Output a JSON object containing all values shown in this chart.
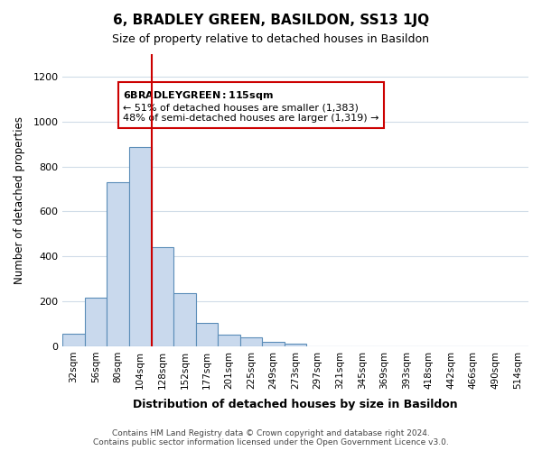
{
  "title": "6, BRADLEY GREEN, BASILDON, SS13 1JQ",
  "subtitle": "Size of property relative to detached houses in Basildon",
  "xlabel": "Distribution of detached houses by size in Basildon",
  "ylabel": "Number of detached properties",
  "bar_labels": [
    "32sqm",
    "56sqm",
    "80sqm",
    "104sqm",
    "128sqm",
    "152sqm",
    "177sqm",
    "201sqm",
    "225sqm",
    "249sqm",
    "273sqm",
    "297sqm",
    "321sqm",
    "345sqm",
    "369sqm",
    "393sqm",
    "418sqm",
    "442sqm",
    "466sqm",
    "490sqm",
    "514sqm"
  ],
  "bar_values": [
    55,
    215,
    730,
    885,
    440,
    235,
    105,
    50,
    40,
    20,
    10,
    0,
    0,
    0,
    0,
    0,
    0,
    0,
    0,
    0,
    0
  ],
  "bar_color": "#c9d9ed",
  "bar_edge_color": "#5b8db8",
  "vline_x": 3.5,
  "vline_color": "#cc0000",
  "ylim": [
    0,
    1300
  ],
  "yticks": [
    0,
    200,
    400,
    600,
    800,
    1000,
    1200
  ],
  "annotation_title": "6 BRADLEY GREEN: 115sqm",
  "annotation_line1": "← 51% of detached houses are smaller (1,383)",
  "annotation_line2": "48% of semi-detached houses are larger (1,319) →",
  "annotation_box_color": "#ffffff",
  "annotation_box_edge": "#cc0000",
  "footer_line1": "Contains HM Land Registry data © Crown copyright and database right 2024.",
  "footer_line2": "Contains public sector information licensed under the Open Government Licence v3.0.",
  "background_color": "#ffffff",
  "grid_color": "#d0dce8"
}
